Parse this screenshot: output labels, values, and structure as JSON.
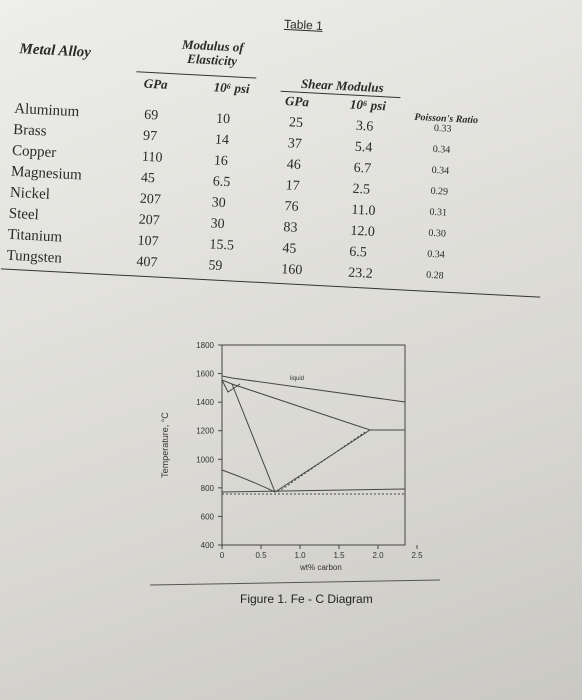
{
  "table": {
    "title": "Table 1",
    "headers": {
      "alloy": "Metal Alloy",
      "modulus": "Modulus of Elasticity",
      "gpa": "GPa",
      "psi": "10⁶ psi",
      "shear": "Shear Modulus",
      "shear_gpa": "GPa",
      "shear_psi": "10⁶ psi",
      "poisson": "Poisson's Ratio"
    },
    "rows": [
      [
        "Aluminum",
        "69",
        "10",
        "25",
        "3.6",
        "0.33"
      ],
      [
        "Brass",
        "97",
        "14",
        "37",
        "5.4",
        "0.34"
      ],
      [
        "Copper",
        "110",
        "16",
        "46",
        "6.7",
        "0.34"
      ],
      [
        "Magnesium",
        "45",
        "6.5",
        "17",
        "2.5",
        "0.29"
      ],
      [
        "Nickel",
        "207",
        "30",
        "76",
        "11.0",
        "0.31"
      ],
      [
        "Steel",
        "207",
        "30",
        "83",
        "12.0",
        "0.30"
      ],
      [
        "Titanium",
        "107",
        "15.5",
        "45",
        "6.5",
        "0.34"
      ],
      [
        "Tungsten",
        "407",
        "59",
        "160",
        "23.2",
        "0.28"
      ]
    ]
  },
  "figure": {
    "caption": "Figure 1. Fe - C Diagram",
    "y_label": "Temperature, °C",
    "x_label": "wt% carbon",
    "region_label": "liquid",
    "y_ticks": [
      "1800",
      "1600",
      "1400",
      "1200",
      "1000",
      "800",
      "600",
      "400"
    ],
    "x_ticks": [
      "0",
      "0.5",
      "1.0",
      "1.5",
      "2.0",
      "2.5"
    ]
  }
}
